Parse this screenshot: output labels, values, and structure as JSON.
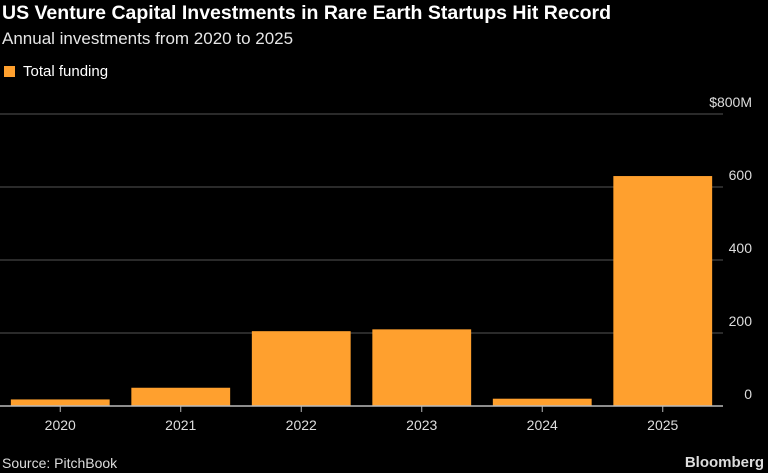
{
  "header": {
    "title": "US Venture Capital Investments in Rare Earth Startups Hit Record",
    "subtitle": "Annual investments from 2020 to 2025"
  },
  "footer": {
    "source": "Source: PitchBook",
    "brand": "Bloomberg"
  },
  "chart_data": {
    "type": "bar",
    "categories": [
      "2020",
      "2021",
      "2022",
      "2023",
      "2024",
      "2025"
    ],
    "series": [
      {
        "name": "Total funding",
        "values": [
          18,
          50,
          205,
          210,
          20,
          630
        ],
        "color": "#ffa02e"
      }
    ],
    "ylim": [
      0,
      800
    ],
    "yticks": [
      0,
      200,
      400,
      600,
      800
    ],
    "ytick_labels": [
      "0",
      "200",
      "400",
      "600",
      "$800M"
    ],
    "grid": true,
    "legend": "top-left",
    "ylabel": "",
    "xlabel": ""
  }
}
